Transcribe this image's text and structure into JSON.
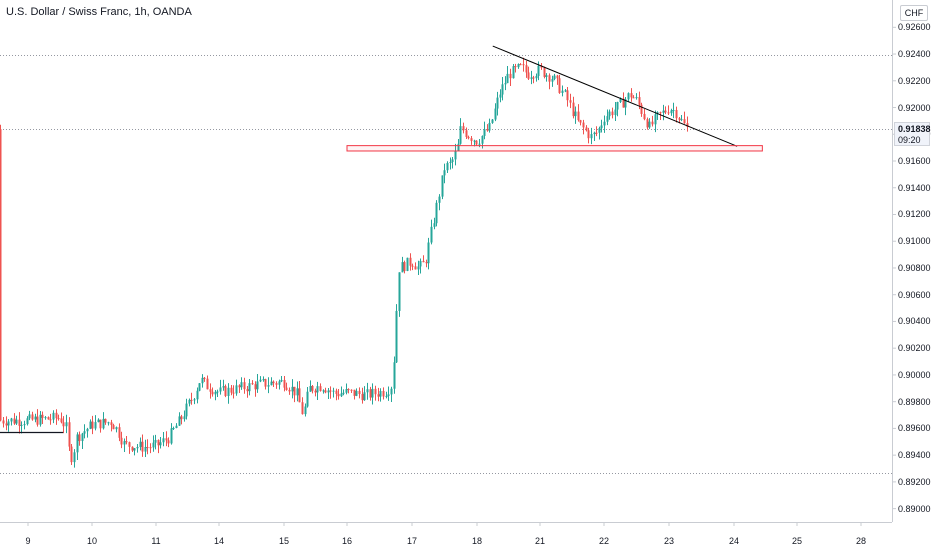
{
  "header": {
    "title": "U.S. Dollar / Swiss Franc, 1h, OANDA",
    "currency": "CHF"
  },
  "last_price": {
    "value": "0.91838",
    "countdown": "09:20"
  },
  "colors": {
    "up": "#26a69a",
    "down": "#ef5350",
    "trendline": "#000000",
    "zone": "#f23645",
    "dotted_level": "#9598a1",
    "axis_text": "#131722"
  },
  "chart_data": {
    "type": "candlestick",
    "title": "U.S. Dollar / Swiss Franc, 1h, OANDA",
    "symbol": "USDCHF",
    "timeframe": "1h",
    "source": "OANDA",
    "currency": "CHF",
    "y_tick_labels": [
      "0.92600",
      "0.92400",
      "0.92200",
      "0.92000",
      "0.91800",
      "0.91600",
      "0.91400",
      "0.91200",
      "0.91000",
      "0.90800",
      "0.90600",
      "0.90400",
      "0.90200",
      "0.90000",
      "0.89800",
      "0.89600",
      "0.89400",
      "0.89200",
      "0.89000"
    ],
    "x_tick_labels": [
      "9",
      "10",
      "11",
      "14",
      "15",
      "16",
      "17",
      "18",
      "21",
      "22",
      "23",
      "24",
      "25",
      "28"
    ],
    "ylim": [
      0.8895,
      0.9272
    ],
    "price_path": [
      [
        0.0,
        0.8966
      ],
      [
        0.5,
        0.8968
      ],
      [
        0.6,
        0.896
      ],
      [
        0.65,
        0.8938
      ],
      [
        0.7,
        0.894
      ],
      [
        0.75,
        0.8953
      ],
      [
        1.0,
        0.8963
      ],
      [
        1.3,
        0.8965
      ],
      [
        1.4,
        0.8958
      ],
      [
        1.5,
        0.8948
      ],
      [
        1.8,
        0.8946
      ],
      [
        2.0,
        0.8947
      ],
      [
        2.2,
        0.8953
      ],
      [
        2.4,
        0.8968
      ],
      [
        2.6,
        0.8985
      ],
      [
        2.7,
        0.8997
      ],
      [
        2.8,
        0.8992
      ],
      [
        3.0,
        0.8987
      ],
      [
        3.3,
        0.899
      ],
      [
        3.6,
        0.8993
      ],
      [
        4.0,
        0.8995
      ],
      [
        4.2,
        0.8986
      ],
      [
        4.3,
        0.897
      ],
      [
        4.4,
        0.899
      ],
      [
        4.6,
        0.8992
      ],
      [
        4.8,
        0.8986
      ],
      [
        5.0,
        0.8987
      ],
      [
        5.3,
        0.8985
      ],
      [
        5.6,
        0.8988
      ],
      [
        5.7,
        0.8993
      ],
      [
        5.75,
        0.904
      ],
      [
        5.8,
        0.908
      ],
      [
        6.0,
        0.9085
      ],
      [
        6.1,
        0.908
      ],
      [
        6.2,
        0.9084
      ],
      [
        6.35,
        0.912
      ],
      [
        6.5,
        0.9155
      ],
      [
        6.6,
        0.9158
      ],
      [
        6.7,
        0.917
      ],
      [
        6.75,
        0.9185
      ],
      [
        6.85,
        0.918
      ],
      [
        7.0,
        0.9175
      ],
      [
        7.2,
        0.9185
      ],
      [
        7.35,
        0.921
      ],
      [
        7.5,
        0.9225
      ],
      [
        7.7,
        0.923
      ],
      [
        7.8,
        0.9225
      ],
      [
        8.0,
        0.9228
      ],
      [
        8.2,
        0.9222
      ],
      [
        8.4,
        0.9208
      ],
      [
        8.6,
        0.9188
      ],
      [
        8.8,
        0.9178
      ],
      [
        8.9,
        0.9182
      ],
      [
        9.0,
        0.9193
      ],
      [
        9.2,
        0.92
      ],
      [
        9.4,
        0.921
      ],
      [
        9.5,
        0.9205
      ],
      [
        9.6,
        0.9195
      ],
      [
        9.7,
        0.9185
      ],
      [
        9.8,
        0.9192
      ],
      [
        10.0,
        0.92
      ],
      [
        10.1,
        0.9197
      ],
      [
        10.2,
        0.9189
      ],
      [
        10.28,
        0.91838
      ]
    ],
    "annotations": [
      {
        "kind": "trendline",
        "from": [
          7.25,
          0.9246
        ],
        "to": [
          11.05,
          0.9171
        ]
      },
      {
        "kind": "rectangle",
        "x0": 5.0,
        "x1": 11.45,
        "y0": 0.91675,
        "y1": 0.91715
      },
      {
        "kind": "horizontal_line",
        "y": 0.91838,
        "style": "dotted"
      },
      {
        "kind": "horizontal_line",
        "y": 0.92395,
        "style": "dotted"
      },
      {
        "kind": "horizontal_line",
        "y": 0.89265,
        "style": "dotted"
      },
      {
        "kind": "horizontal_segment",
        "y": 0.89575,
        "x0": -0.45,
        "x1": 0.55
      }
    ],
    "grid": false,
    "legend": "none"
  }
}
